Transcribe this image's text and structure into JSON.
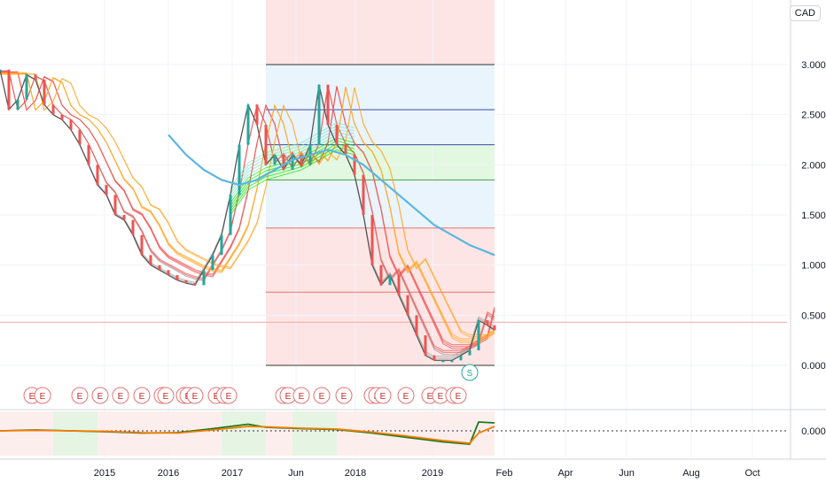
{
  "currency": "CAD",
  "chart_data": [
    {
      "type": "line",
      "y_unit": "CAD",
      "ylim": [
        -0.1,
        3.6
      ],
      "y_ticks": [
        "0.000",
        "0.500",
        "1.000",
        "1.500",
        "2.000",
        "2.500",
        "3.000"
      ],
      "x_ticks": [
        "2015",
        "2016",
        "2017",
        "Jun",
        "2018",
        "2019",
        "Feb",
        "Apr",
        "Jun",
        "Aug",
        "Oct"
      ],
      "grid": true,
      "series": [
        {
          "x": [
            0,
            10,
            20,
            30,
            40,
            50,
            60,
            70,
            80,
            90,
            100,
            110,
            120,
            130,
            140,
            150,
            160,
            170,
            180,
            190,
            200,
            210,
            220,
            230,
            240,
            250,
            260,
            270,
            280,
            290,
            300,
            310,
            320,
            330,
            340,
            350,
            360,
            370,
            380,
            390,
            400,
            410,
            420,
            430,
            440,
            450,
            460,
            470,
            480,
            490,
            500,
            510,
            520,
            530,
            540,
            550,
            558
          ],
          "values": [
            2.95,
            2.55,
            2.65,
            2.9,
            2.85,
            2.6,
            2.5,
            2.45,
            2.35,
            2.2,
            2.0,
            1.8,
            1.7,
            1.5,
            1.45,
            1.3,
            1.1,
            1.0,
            0.95,
            0.9,
            0.85,
            0.82,
            0.8,
            0.95,
            1.1,
            1.3,
            1.7,
            2.2,
            2.6,
            2.4,
            2.0,
            2.1,
            1.95,
            2.1,
            2.0,
            2.2,
            2.8,
            2.4,
            2.2,
            2.1,
            1.9,
            1.5,
            1.0,
            0.8,
            0.9,
            0.7,
            0.5,
            0.3,
            0.1,
            0.05,
            0.05,
            0.05,
            0.1,
            0.15,
            0.45,
            0.4,
            0.35
          ]
        },
        {
          "x": [
            190,
            210,
            230,
            250,
            270,
            290,
            310,
            330,
            350,
            370,
            390,
            410,
            430,
            450,
            470,
            490,
            510,
            530,
            558
          ],
          "values": [
            2.3,
            2.1,
            1.95,
            1.85,
            1.8,
            1.85,
            1.95,
            2.05,
            2.1,
            2.15,
            2.1,
            2.0,
            1.85,
            1.7,
            1.55,
            1.4,
            1.3,
            1.2,
            1.1
          ]
        }
      ],
      "levels": [
        {
          "value": 0.0,
          "label": "0.000"
        },
        {
          "value": 0.73
        },
        {
          "value": 1.37
        },
        {
          "value": 1.85
        },
        {
          "value": 2.2
        },
        {
          "value": 2.55
        },
        {
          "value": 3.0
        }
      ],
      "current_price_level": 0.43,
      "event_markers": [
        "E",
        "E",
        "E",
        "E",
        "E",
        "E",
        "E",
        "E",
        "E",
        "E",
        "E",
        "E",
        "E",
        "E",
        "E",
        "E",
        "E",
        "E",
        "E",
        "E",
        "E",
        "E",
        "E",
        "E",
        "E",
        "E",
        "E"
      ],
      "split_marker": "S",
      "colors": {
        "down_ribbon": "#ff0000",
        "up_ribbon": "#00e600",
        "ma_line": "#5bb6e0",
        "candle_up": "#26a69a",
        "candle_down": "#ef5350"
      }
    },
    {
      "type": "line",
      "y_ticks": [
        "0.000"
      ],
      "zero_line": 0.0,
      "series": [
        {
          "x": [
            0,
            40,
            80,
            120,
            160,
            200,
            240,
            280,
            300,
            340,
            380,
            420,
            460,
            500,
            530,
            540,
            558
          ],
          "values": [
            0.0,
            0.02,
            0.0,
            -0.02,
            -0.05,
            -0.04,
            0.05,
            0.15,
            0.08,
            0.05,
            0.03,
            -0.05,
            -0.15,
            -0.25,
            -0.3,
            0.2,
            0.18
          ]
        },
        {
          "x": [
            0,
            40,
            80,
            120,
            160,
            200,
            240,
            280,
            300,
            340,
            380,
            420,
            460,
            500,
            530,
            540,
            558
          ],
          "values": [
            0.0,
            0.01,
            0.0,
            -0.01,
            -0.04,
            -0.05,
            0.02,
            0.1,
            0.09,
            0.06,
            0.04,
            -0.03,
            -0.12,
            -0.22,
            -0.28,
            -0.05,
            0.1
          ]
        }
      ],
      "colors": {
        "oscillator": "#1b7a1b",
        "signal": "#f57c00",
        "zero_line": "#333333"
      }
    }
  ]
}
